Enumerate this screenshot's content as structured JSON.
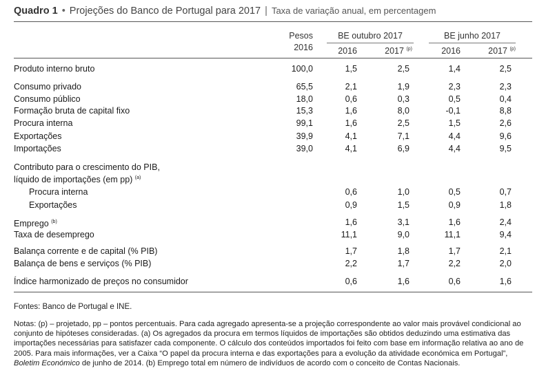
{
  "title": {
    "number": "Quadro 1",
    "bullet": "•",
    "main": "Projeções do Banco de Portugal para 2017",
    "separator": "|",
    "subtitle": "Taxa de variação anual, em percentagem"
  },
  "header": {
    "pesos": "Pesos",
    "pesos_year": "2016",
    "group1": "BE outubro 2017",
    "group2": "BE junho 2017",
    "y2016": "2016",
    "y2017": "2017",
    "proj_mark": "(p)"
  },
  "rows": [
    {
      "label": "Produto interno bruto",
      "peso": "100,0",
      "a16": "1,5",
      "a17": "2,5",
      "b16": "1,4",
      "b17": "2,5"
    },
    {
      "label": "Consumo privado",
      "peso": "65,5",
      "a16": "2,1",
      "a17": "1,9",
      "b16": "2,3",
      "b17": "2,3"
    },
    {
      "label": "Consumo público",
      "peso": "18,0",
      "a16": "0,6",
      "a17": "0,3",
      "b16": "0,5",
      "b17": "0,4"
    },
    {
      "label": "Formação bruta de capital fixo",
      "peso": "15,3",
      "a16": "1,6",
      "a17": "8,0",
      "b16": "-0,1",
      "b17": "8,8"
    },
    {
      "label": "Procura interna",
      "peso": "99,1",
      "a16": "1,6",
      "a17": "2,5",
      "b16": "1,5",
      "b17": "2,6"
    },
    {
      "label": "Exportações",
      "peso": "39,9",
      "a16": "4,1",
      "a17": "7,1",
      "b16": "4,4",
      "b17": "9,6"
    },
    {
      "label": "Importações",
      "peso": "39,0",
      "a16": "4,1",
      "a17": "6,9",
      "b16": "4,4",
      "b17": "9,5"
    }
  ],
  "contrib": {
    "line1": "Contributo para o crescimento do PIB,",
    "line2": "líquido de importações (em pp)",
    "mark": "(a)",
    "rows": [
      {
        "label": "Procura interna",
        "a16": "0,6",
        "a17": "1,0",
        "b16": "0,5",
        "b17": "0,7"
      },
      {
        "label": "Exportações",
        "a16": "0,9",
        "a17": "1,5",
        "b16": "0,9",
        "b17": "1,8"
      }
    ]
  },
  "rows2": [
    {
      "label": "Emprego",
      "mark": "(b)",
      "a16": "1,6",
      "a17": "3,1",
      "b16": "1,6",
      "b17": "2,4"
    },
    {
      "label": "Taxa de desemprego",
      "mark": "",
      "a16": "11,1",
      "a17": "9,0",
      "b16": "11,1",
      "b17": "9,4"
    },
    {
      "label": "Balança corrente e de capital (% PIB)",
      "mark": "",
      "a16": "1,7",
      "a17": "1,8",
      "b16": "1,7",
      "b17": "2,1"
    },
    {
      "label": "Balança de bens e serviços (% PIB)",
      "mark": "",
      "a16": "2,2",
      "a17": "1,7",
      "b16": "2,2",
      "b17": "2,0"
    },
    {
      "label": "Índice harmonizado de preços no consumidor",
      "mark": "",
      "a16": "0,6",
      "a17": "1,6",
      "b16": "0,6",
      "b17": "1,6"
    }
  ],
  "sources": "Fontes: Banco de Portugal e INE.",
  "notes": {
    "part1": "Notas: (p) – projetado, pp – pontos percentuais. Para cada agregado apresenta-se a projeção correspondente ao valor mais provável condicional ao conjunto de hipóteses consideradas. (a) Os agregados da procura em termos líquidos de importações são obtidos deduzindo uma estimativa das importações necessárias para satisfazer cada componente. O cálculo dos conteúdos importados foi feito com base em informação relativa ao ano de 2005. Para mais informações, ver a Caixa “O papel da procura interna e das exportações para a evolução da atividade económica em Portugal”,",
    "italic": "Boletim Económico",
    "part2": "de junho de 2014. (b) Emprego total em número de indivíduos de acordo com o conceito de Contas Nacionais."
  }
}
